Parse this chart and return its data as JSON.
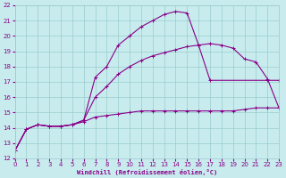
{
  "xlabel": "Windchill (Refroidissement éolien,°C)",
  "bg_color": "#c8ecee",
  "line_color": "#880088",
  "grid_color": "#99cccc",
  "xlim": [
    0,
    23
  ],
  "ylim": [
    12,
    22
  ],
  "xticks": [
    0,
    1,
    2,
    3,
    4,
    5,
    6,
    7,
    8,
    9,
    10,
    11,
    12,
    13,
    14,
    15,
    16,
    17,
    18,
    19,
    20,
    21,
    22,
    23
  ],
  "yticks": [
    12,
    13,
    14,
    15,
    16,
    17,
    18,
    19,
    20,
    21,
    22
  ],
  "curve1_x": [
    0,
    1,
    2,
    3,
    4,
    5,
    6,
    7,
    8,
    9,
    10,
    11,
    12,
    13,
    14,
    15,
    16,
    17,
    22,
    23
  ],
  "curve1_y": [
    12.5,
    13.9,
    14.2,
    14.1,
    14.1,
    14.2,
    14.5,
    17.3,
    18.0,
    19.4,
    20.0,
    20.6,
    21.0,
    21.4,
    21.6,
    21.5,
    19.4,
    17.1,
    17.1,
    17.1
  ],
  "curve2_x": [
    0,
    1,
    2,
    3,
    4,
    5,
    6,
    7,
    8,
    9,
    10,
    11,
    12,
    13,
    14,
    15,
    16,
    17,
    18,
    19,
    20,
    21,
    22,
    23
  ],
  "curve2_y": [
    12.5,
    13.9,
    14.2,
    14.1,
    14.1,
    14.2,
    14.5,
    16.0,
    16.7,
    17.5,
    18.0,
    18.4,
    18.7,
    18.9,
    19.1,
    19.3,
    19.4,
    19.5,
    19.4,
    19.2,
    18.5,
    18.3,
    17.2,
    15.3
  ],
  "curve3_x": [
    0,
    1,
    2,
    3,
    4,
    5,
    6,
    7,
    8,
    9,
    10,
    11,
    12,
    13,
    14,
    15,
    16,
    17,
    18,
    19,
    20,
    21,
    22,
    23
  ],
  "curve3_y": [
    12.5,
    13.9,
    14.2,
    14.1,
    14.1,
    14.2,
    14.4,
    14.7,
    14.8,
    14.9,
    15.0,
    15.1,
    15.1,
    15.1,
    15.1,
    15.1,
    15.1,
    15.1,
    15.1,
    15.1,
    15.2,
    15.3,
    15.3,
    15.3
  ]
}
